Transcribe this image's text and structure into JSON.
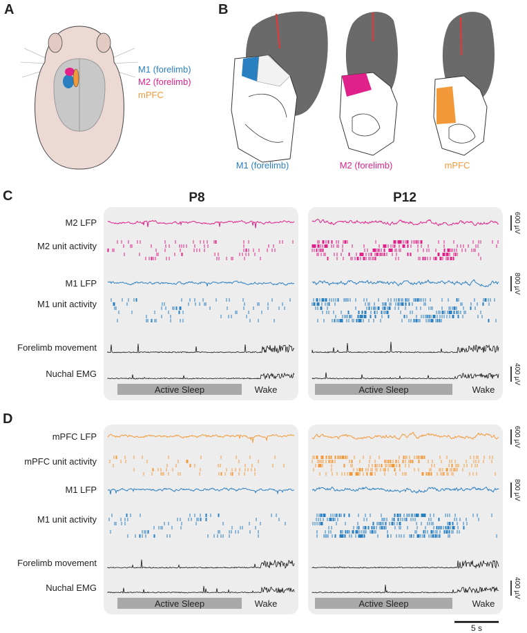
{
  "panel_a": {
    "label": "A",
    "legend": [
      "M1 (forelimb)",
      "M2 (forelimb)",
      "mPFC"
    ]
  },
  "panel_b": {
    "label": "B",
    "captions": [
      "M1 (forelimb)",
      "M2 (forelimb)",
      "mPFC"
    ]
  },
  "panel_c": {
    "label": "C",
    "columns": [
      "P8",
      "P12"
    ],
    "rows": [
      "M2 LFP",
      "M2 unit activity",
      "M1 LFP",
      "M1 unit activity",
      "Forelimb movement",
      "Nuchal EMG"
    ],
    "states": [
      "Active Sleep",
      "Wake"
    ],
    "scale_bars": [
      "600 µV",
      "800 µV",
      "400 µV"
    ]
  },
  "panel_d": {
    "label": "D",
    "rows": [
      "mPFC LFP",
      "mPFC unit activity",
      "M1 LFP",
      "M1 unit activity",
      "Forelimb movement",
      "Nuchal EMG"
    ],
    "states": [
      "Active Sleep",
      "Wake"
    ],
    "scale_bars": [
      "600 µV",
      "800 µV",
      "400 µV"
    ]
  },
  "time_scale": "5 s"
}
